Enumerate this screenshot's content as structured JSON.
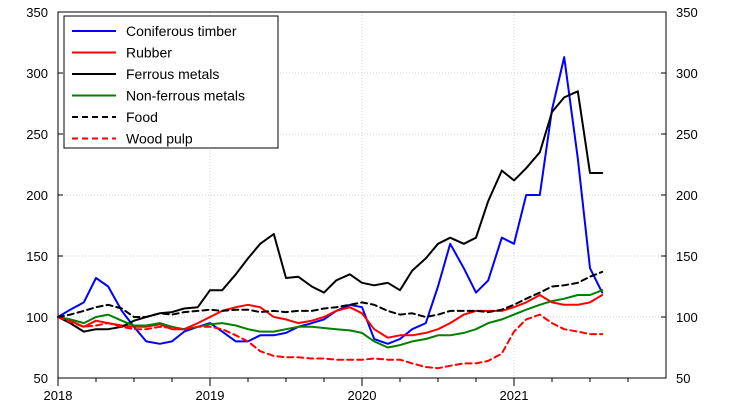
{
  "chart_data": {
    "type": "line",
    "x_unit": "year",
    "xlim": [
      2018.0,
      2022.0
    ],
    "x_ticks": [
      2018,
      2019,
      2020,
      2021
    ],
    "x_tick_labels": [
      "2018",
      "2019",
      "2020",
      "2021"
    ],
    "ylim": [
      50,
      350
    ],
    "y_ticks": [
      50,
      100,
      150,
      200,
      250,
      300,
      350
    ],
    "y_tick_labels": [
      "50",
      "100",
      "150",
      "200",
      "250",
      "300",
      "350"
    ],
    "y_axis_right": true,
    "grid": true,
    "legend_position": "top-left",
    "series": [
      {
        "name": "Coniferous timber",
        "color": "#0000ff",
        "dash": "solid",
        "x": [
          2018.0,
          2018.08,
          2018.17,
          2018.25,
          2018.33,
          2018.42,
          2018.5,
          2018.58,
          2018.67,
          2018.75,
          2018.83,
          2018.92,
          2019.0,
          2019.08,
          2019.17,
          2019.25,
          2019.33,
          2019.42,
          2019.5,
          2019.58,
          2019.67,
          2019.75,
          2019.83,
          2019.92,
          2020.0,
          2020.08,
          2020.17,
          2020.25,
          2020.33,
          2020.42,
          2020.5,
          2020.58,
          2020.67,
          2020.75,
          2020.83,
          2020.92,
          2021.0,
          2021.08,
          2021.17,
          2021.25,
          2021.33,
          2021.42,
          2021.5,
          2021.58
        ],
        "values": [
          100,
          106,
          112,
          132,
          125,
          105,
          92,
          80,
          78,
          80,
          88,
          92,
          95,
          88,
          80,
          80,
          85,
          85,
          87,
          92,
          95,
          98,
          105,
          110,
          108,
          82,
          78,
          82,
          90,
          95,
          125,
          160,
          140,
          120,
          130,
          165,
          160,
          200,
          200,
          270,
          313,
          230,
          140,
          120
        ]
      },
      {
        "name": "Rubber",
        "color": "#ff0000",
        "dash": "solid",
        "x": [
          2018.0,
          2018.08,
          2018.17,
          2018.25,
          2018.33,
          2018.42,
          2018.5,
          2018.58,
          2018.67,
          2018.75,
          2018.83,
          2018.92,
          2019.0,
          2019.08,
          2019.17,
          2019.25,
          2019.33,
          2019.42,
          2019.5,
          2019.58,
          2019.67,
          2019.75,
          2019.83,
          2019.92,
          2020.0,
          2020.08,
          2020.17,
          2020.25,
          2020.33,
          2020.42,
          2020.5,
          2020.58,
          2020.67,
          2020.75,
          2020.83,
          2020.92,
          2021.0,
          2021.08,
          2021.17,
          2021.25,
          2021.33,
          2021.42,
          2021.5,
          2021.58
        ],
        "values": [
          100,
          97,
          92,
          97,
          95,
          93,
          92,
          92,
          94,
          90,
          90,
          95,
          100,
          105,
          108,
          110,
          108,
          100,
          98,
          95,
          97,
          100,
          105,
          108,
          103,
          90,
          83,
          85,
          85,
          87,
          90,
          95,
          102,
          105,
          105,
          105,
          108,
          112,
          118,
          112,
          110,
          110,
          112,
          118
        ]
      },
      {
        "name": "Ferrous metals",
        "color": "#000000",
        "dash": "solid",
        "x": [
          2018.0,
          2018.08,
          2018.17,
          2018.25,
          2018.33,
          2018.42,
          2018.5,
          2018.58,
          2018.67,
          2018.75,
          2018.83,
          2018.92,
          2019.0,
          2019.08,
          2019.17,
          2019.25,
          2019.33,
          2019.42,
          2019.5,
          2019.58,
          2019.67,
          2019.75,
          2019.83,
          2019.92,
          2020.0,
          2020.08,
          2020.17,
          2020.25,
          2020.33,
          2020.42,
          2020.5,
          2020.58,
          2020.67,
          2020.75,
          2020.83,
          2020.92,
          2021.0,
          2021.08,
          2021.17,
          2021.25,
          2021.33,
          2021.42,
          2021.5,
          2021.58
        ],
        "values": [
          100,
          95,
          88,
          90,
          90,
          92,
          97,
          100,
          103,
          104,
          107,
          108,
          122,
          122,
          135,
          148,
          160,
          168,
          132,
          133,
          125,
          120,
          130,
          135,
          128,
          126,
          128,
          122,
          138,
          148,
          160,
          165,
          160,
          165,
          195,
          220,
          212,
          222,
          235,
          268,
          280,
          285,
          218,
          218
        ]
      },
      {
        "name": "Non-ferrous metals",
        "color": "#008000",
        "dash": "solid",
        "x": [
          2018.0,
          2018.08,
          2018.17,
          2018.25,
          2018.33,
          2018.42,
          2018.5,
          2018.58,
          2018.67,
          2018.75,
          2018.83,
          2018.92,
          2019.0,
          2019.08,
          2019.17,
          2019.25,
          2019.33,
          2019.42,
          2019.5,
          2019.58,
          2019.67,
          2019.75,
          2019.83,
          2019.92,
          2020.0,
          2020.08,
          2020.17,
          2020.25,
          2020.33,
          2020.42,
          2020.5,
          2020.58,
          2020.67,
          2020.75,
          2020.83,
          2020.92,
          2021.0,
          2021.08,
          2021.17,
          2021.25,
          2021.33,
          2021.42,
          2021.5,
          2021.58
        ],
        "values": [
          100,
          98,
          95,
          100,
          102,
          97,
          93,
          93,
          95,
          92,
          90,
          92,
          94,
          95,
          93,
          90,
          88,
          88,
          90,
          92,
          92,
          91,
          90,
          89,
          87,
          80,
          75,
          77,
          80,
          82,
          85,
          85,
          87,
          90,
          95,
          98,
          102,
          106,
          110,
          113,
          115,
          118,
          118,
          122
        ]
      },
      {
        "name": "Food",
        "color": "#000000",
        "dash": "dashed",
        "x": [
          2018.0,
          2018.08,
          2018.17,
          2018.25,
          2018.33,
          2018.42,
          2018.5,
          2018.58,
          2018.67,
          2018.75,
          2018.83,
          2018.92,
          2019.0,
          2019.08,
          2019.17,
          2019.25,
          2019.33,
          2019.42,
          2019.5,
          2019.58,
          2019.67,
          2019.75,
          2019.83,
          2019.92,
          2020.0,
          2020.08,
          2020.17,
          2020.25,
          2020.33,
          2020.42,
          2020.5,
          2020.58,
          2020.67,
          2020.75,
          2020.83,
          2020.92,
          2021.0,
          2021.08,
          2021.17,
          2021.25,
          2021.33,
          2021.42,
          2021.5,
          2021.58
        ],
        "values": [
          100,
          102,
          105,
          108,
          110,
          107,
          100,
          100,
          103,
          102,
          104,
          105,
          106,
          105,
          106,
          106,
          104,
          105,
          104,
          105,
          105,
          107,
          108,
          110,
          112,
          110,
          105,
          102,
          103,
          100,
          102,
          105,
          105,
          105,
          104,
          106,
          110,
          115,
          120,
          125,
          126,
          128,
          133,
          137
        ]
      },
      {
        "name": "Wood pulp",
        "color": "#ff0000",
        "dash": "dashed",
        "x": [
          2018.0,
          2018.08,
          2018.17,
          2018.25,
          2018.33,
          2018.42,
          2018.5,
          2018.58,
          2018.67,
          2018.75,
          2018.83,
          2018.92,
          2019.0,
          2019.08,
          2019.17,
          2019.25,
          2019.33,
          2019.42,
          2019.5,
          2019.58,
          2019.67,
          2019.75,
          2019.83,
          2019.92,
          2020.0,
          2020.08,
          2020.17,
          2020.25,
          2020.33,
          2020.42,
          2020.5,
          2020.58,
          2020.67,
          2020.75,
          2020.83,
          2020.92,
          2021.0,
          2021.08,
          2021.17,
          2021.25,
          2021.33,
          2021.42,
          2021.5,
          2021.58
        ],
        "values": [
          100,
          96,
          92,
          93,
          95,
          92,
          90,
          90,
          92,
          91,
          90,
          92,
          92,
          90,
          85,
          80,
          72,
          68,
          67,
          67,
          66,
          66,
          65,
          65,
          65,
          66,
          65,
          65,
          62,
          59,
          58,
          60,
          62,
          62,
          64,
          70,
          88,
          98,
          102,
          95,
          90,
          88,
          86,
          86
        ]
      }
    ]
  }
}
